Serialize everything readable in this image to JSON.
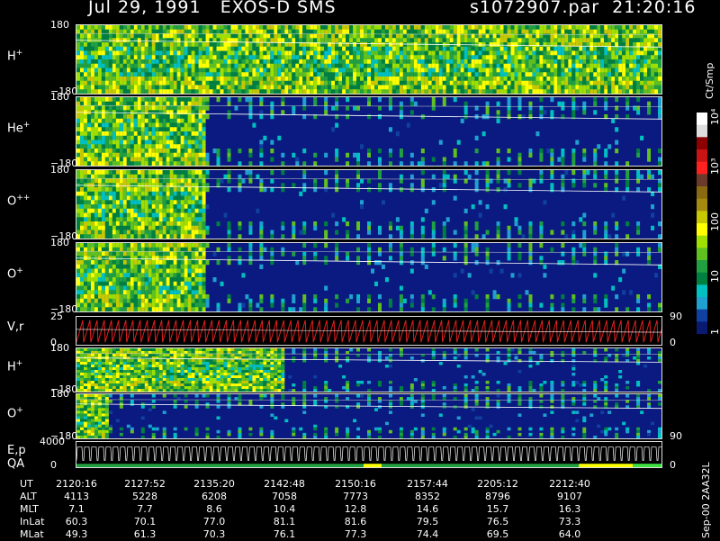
{
  "header": {
    "left": "Jul 29, 1991   EXOS-D SMS",
    "right": "s1072907.par  21:20:16"
  },
  "colorbar": {
    "title": "Ct/Smp",
    "labels": [
      "10⁴",
      "10³",
      "100",
      "10",
      "1"
    ],
    "colors": [
      "#ffffff",
      "#dddddd",
      "#8b0000",
      "#c81414",
      "#ff2020",
      "#6b3a2a",
      "#8a6a10",
      "#a58a10",
      "#c8c800",
      "#ffff00",
      "#a0e000",
      "#60c020",
      "#20a040",
      "#008040",
      "#00c0c0",
      "#20a0d0",
      "#1040a0",
      "#0a1a70"
    ]
  },
  "footer_code": "Sep-00  2AA32L",
  "chart_data": {
    "type": "heatmap",
    "panels": [
      {
        "label": "H",
        "sup": "+",
        "ymax": "180",
        "ymin": "−180",
        "dense_until": 1.0,
        "background": "#101870"
      },
      {
        "label": "He",
        "sup": "+",
        "ymax": "180",
        "ymin": "−180",
        "dense_until": 0.22,
        "background": "#0a1a80"
      },
      {
        "label": "O",
        "sup": "++",
        "ymax": "180",
        "ymin": "−180",
        "dense_until": 0.22,
        "background": "#0a1a80"
      },
      {
        "label": "O",
        "sup": "+",
        "ymax": "180",
        "ymin": "−180",
        "dense_until": 0.22,
        "background": "#0a1a80"
      },
      {
        "label": "V,r",
        "ymax": "25",
        "ymin": "0",
        "right_top": "90",
        "right_bottom": "0"
      },
      {
        "label": "H",
        "sup": "+",
        "ymax": "180",
        "ymin": "−180",
        "dense_until": 0.35,
        "background": "#0a1a80"
      },
      {
        "label": "O",
        "sup": "+",
        "ymax": "180",
        "ymin": "−180",
        "dense_until": 0.05,
        "background": "#0a1a80",
        "right_bottom": "90"
      },
      {
        "label": "E,p",
        "label2": "QA",
        "ymax": "4000",
        "ymin": "0",
        "right_bottom": "0"
      }
    ],
    "ut_ticks": [
      "2120:16",
      "2127:52",
      "2135:20",
      "2142:48",
      "2150:16",
      "2157:44",
      "2205:12",
      "2212:40"
    ],
    "rows": [
      {
        "label": "UT",
        "values": [
          "2120:16",
          "2127:52",
          "2135:20",
          "2142:48",
          "2150:16",
          "2157:44",
          "2205:12",
          "2212:40"
        ]
      },
      {
        "label": "ALT",
        "values": [
          "4113",
          "5228",
          "6208",
          "7058",
          "7773",
          "8352",
          "8796",
          "9107"
        ]
      },
      {
        "label": "MLT",
        "values": [
          "7.1",
          "7.7",
          "8.6",
          "10.4",
          "12.8",
          "14.6",
          "15.7",
          "16.3"
        ]
      },
      {
        "label": "InLat",
        "values": [
          "60.3",
          "70.1",
          "77.0",
          "81.1",
          "81.6",
          "79.5",
          "76.5",
          "73.3"
        ]
      },
      {
        "label": "MLat",
        "values": [
          "49.3",
          "61.3",
          "70.3",
          "76.1",
          "77.3",
          "74.4",
          "69.5",
          "64.0"
        ]
      }
    ]
  }
}
